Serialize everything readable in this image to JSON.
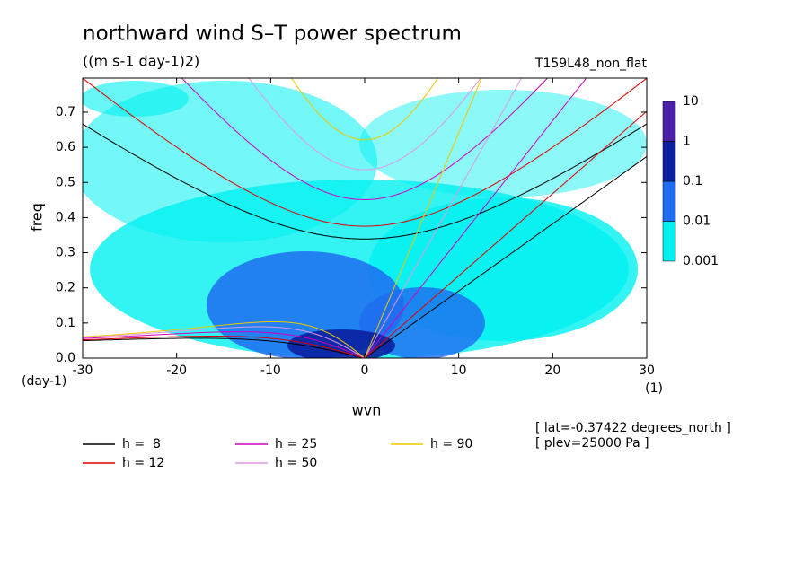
{
  "chart_data": {
    "type": "dispersion",
    "title": "northward wind S–T power spectrum",
    "subtitle": "((m s-1 day-1)2)",
    "run_label": "T159L48_non_flat",
    "xlabel": "wvn",
    "ylabel": "freq",
    "x_unit": "(1)",
    "y_unit": "(day-1)",
    "xlim": [
      -30,
      30
    ],
    "xticks": [
      -30,
      -20,
      -10,
      0,
      10,
      20,
      30
    ],
    "ylim": [
      0,
      0.797
    ],
    "yticks": [
      0,
      0.1,
      0.2,
      0.3,
      0.4,
      0.5,
      0.6,
      0.7
    ],
    "yticks_labels": [
      "0.0",
      "0.1",
      "0.2",
      "0.3",
      "0.4",
      "0.5",
      "0.6",
      "0.7"
    ],
    "series": [
      {
        "name": "h =  8",
        "h": 8,
        "color": "#000000"
      },
      {
        "name": "h = 12",
        "h": 12,
        "color": "#e00000"
      },
      {
        "name": "h = 25",
        "h": 25,
        "color": "#d000c0"
      },
      {
        "name": "h = 50",
        "h": 50,
        "color": "#e098e0"
      },
      {
        "name": "h = 90",
        "h": 90,
        "color": "#f0c800"
      }
    ],
    "colorbar": {
      "levels": [
        0.001,
        0.01,
        0.1,
        1,
        10
      ],
      "colors": [
        "#00f0f0",
        "#1e6cf0",
        "#0a1fa0",
        "#4b1fa8"
      ]
    },
    "annotations": [
      "[ lat=-0.37422 degrees_north ]",
      "[ plev=25000 Pa ]"
    ]
  }
}
